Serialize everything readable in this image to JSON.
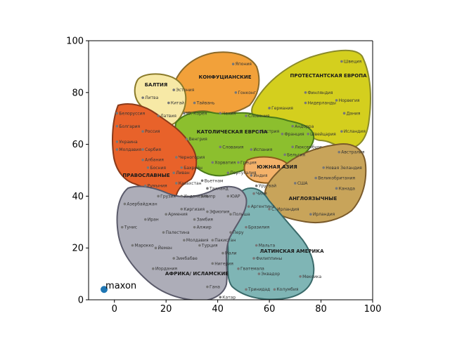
{
  "chart_data": {
    "type": "scatter",
    "xlim": [
      -10,
      100
    ],
    "ylim": [
      0,
      100
    ],
    "xticks": [
      0,
      20,
      40,
      60,
      80,
      100
    ],
    "yticks": [
      0,
      20,
      40,
      60,
      80,
      100
    ],
    "grid": false,
    "series": [
      {
        "name": "maxon",
        "color": "#1f77b4",
        "points": [
          {
            "x": -4,
            "y": 4
          }
        ]
      }
    ],
    "background_map": {
      "regions": [
        {
          "label": "БАЛТИЯ",
          "color": "#f7e9a6"
        },
        {
          "label": "КОНФУЦИАНСКИЕ",
          "color": "#f2a13a"
        },
        {
          "label": "ПРОТЕСТАНТСКАЯ ЕВРОПА",
          "color": "#d4cf1e"
        },
        {
          "label": "КАТОЛИЧЕСКАЯ ЕВРОПА",
          "color": "#8cbf2e"
        },
        {
          "label": "ПРАВОСЛАВНЫЕ",
          "color": "#e8622a"
        },
        {
          "label": "ЮЖНАЯ АЗИЯ",
          "color": "#f4b26a"
        },
        {
          "label": "АНГЛОЯЗЫЧНЫЕ",
          "color": "#c8a45a"
        },
        {
          "label": "ЛАТИНСКАЯ АМЕРИКА",
          "color": "#7fb5b5"
        },
        {
          "label": "АФРИКА/ ИСЛАМСКИЕ",
          "color": "#adadb8"
        }
      ],
      "countries": [
        {
          "name": "Япония",
          "x": 46,
          "y": 91
        },
        {
          "name": "Гонконг",
          "x": 47,
          "y": 80
        },
        {
          "name": "Эстония",
          "x": 23,
          "y": 81
        },
        {
          "name": "Литва",
          "x": 11,
          "y": 78
        },
        {
          "name": "Китай",
          "x": 21,
          "y": 76
        },
        {
          "name": "Тайвань",
          "x": 31,
          "y": 76
        },
        {
          "name": "Латвия",
          "x": 17,
          "y": 71
        },
        {
          "name": "Ю. Корея",
          "x": 27,
          "y": 72
        },
        {
          "name": "Белоруссия",
          "x": 1,
          "y": 72
        },
        {
          "name": "Болгария",
          "x": 1,
          "y": 67
        },
        {
          "name": "Россия",
          "x": 11,
          "y": 65
        },
        {
          "name": "Украина",
          "x": 1,
          "y": 61
        },
        {
          "name": "Молдавия",
          "x": 1,
          "y": 58
        },
        {
          "name": "Сербия",
          "x": 11,
          "y": 58
        },
        {
          "name": "Албания",
          "x": 11,
          "y": 54
        },
        {
          "name": "Босния",
          "x": 13,
          "y": 51
        },
        {
          "name": "Черногория",
          "x": 24,
          "y": 55
        },
        {
          "name": "Венгрия",
          "x": 28,
          "y": 62
        },
        {
          "name": "Чехия",
          "x": 41,
          "y": 72
        },
        {
          "name": "Словения",
          "x": 51,
          "y": 71
        },
        {
          "name": "Словакия",
          "x": 41,
          "y": 59
        },
        {
          "name": "Австрия",
          "x": 56,
          "y": 65
        },
        {
          "name": "Испания",
          "x": 53,
          "y": 58
        },
        {
          "name": "Хорватия",
          "x": 38,
          "y": 53
        },
        {
          "name": "Греция",
          "x": 48,
          "y": 53
        },
        {
          "name": "Португалия",
          "x": 44,
          "y": 49
        },
        {
          "name": "Индия",
          "x": 53,
          "y": 48
        },
        {
          "name": "Германия",
          "x": 60,
          "y": 74
        },
        {
          "name": "Финляндия",
          "x": 74,
          "y": 80
        },
        {
          "name": "Нидерланды",
          "x": 74,
          "y": 76
        },
        {
          "name": "Швеция",
          "x": 88,
          "y": 92
        },
        {
          "name": "Норвегия",
          "x": 86,
          "y": 77
        },
        {
          "name": "Дания",
          "x": 89,
          "y": 72
        },
        {
          "name": "Исландия",
          "x": 88,
          "y": 65
        },
        {
          "name": "Андорра",
          "x": 69,
          "y": 67
        },
        {
          "name": "Франция",
          "x": 65,
          "y": 64
        },
        {
          "name": "Швейцария",
          "x": 75,
          "y": 64
        },
        {
          "name": "Люксембург",
          "x": 69,
          "y": 59
        },
        {
          "name": "Бельгия",
          "x": 66,
          "y": 56
        },
        {
          "name": "Австралия",
          "x": 87,
          "y": 57
        },
        {
          "name": "Новая Зеландия",
          "x": 81,
          "y": 51
        },
        {
          "name": "Великобритания",
          "x": 78,
          "y": 47
        },
        {
          "name": "США",
          "x": 70,
          "y": 45
        },
        {
          "name": "Канада",
          "x": 86,
          "y": 43
        },
        {
          "name": "С. Ирландия",
          "x": 60,
          "y": 35
        },
        {
          "name": "Ирландия",
          "x": 76,
          "y": 33
        },
        {
          "name": "Уругвай",
          "x": 55,
          "y": 44
        },
        {
          "name": "Чили",
          "x": 54,
          "y": 41
        },
        {
          "name": "Аргентина",
          "x": 52,
          "y": 36
        },
        {
          "name": "Польша",
          "x": 45,
          "y": 33
        },
        {
          "name": "Бразилия",
          "x": 51,
          "y": 28
        },
        {
          "name": "Перу",
          "x": 45,
          "y": 26
        },
        {
          "name": "Мальта",
          "x": 55,
          "y": 21
        },
        {
          "name": "Филиппины",
          "x": 54,
          "y": 16
        },
        {
          "name": "Гватемала",
          "x": 48,
          "y": 12
        },
        {
          "name": "Эквадор",
          "x": 56,
          "y": 10
        },
        {
          "name": "Мексика",
          "x": 72,
          "y": 9
        },
        {
          "name": "Тринидад",
          "x": 51,
          "y": 4
        },
        {
          "name": "Колумбия",
          "x": 62,
          "y": 4
        },
        {
          "name": "Бахрейн",
          "x": 26,
          "y": 51
        },
        {
          "name": "Ливан",
          "x": 23,
          "y": 49
        },
        {
          "name": "Казахстан",
          "x": 24,
          "y": 45
        },
        {
          "name": "Вьетнам",
          "x": 34,
          "y": 46
        },
        {
          "name": "Таиланд",
          "x": 36,
          "y": 43
        },
        {
          "name": "Кипр",
          "x": 34,
          "y": 40
        },
        {
          "name": "ЮАР",
          "x": 44,
          "y": 40
        },
        {
          "name": "Румыния",
          "x": 12,
          "y": 44
        },
        {
          "name": "Грузия",
          "x": 17,
          "y": 40
        },
        {
          "name": "Индонезия",
          "x": 26,
          "y": 40
        },
        {
          "name": "Азербайджан",
          "x": 4,
          "y": 37
        },
        {
          "name": "Киргизия",
          "x": 26,
          "y": 35
        },
        {
          "name": "Эфиопия",
          "x": 36,
          "y": 34
        },
        {
          "name": "Армения",
          "x": 20,
          "y": 33
        },
        {
          "name": "Замбия",
          "x": 31,
          "y": 31
        },
        {
          "name": "Иран",
          "x": 12,
          "y": 31
        },
        {
          "name": "Алжир",
          "x": 31,
          "y": 28
        },
        {
          "name": "Тунис",
          "x": 3,
          "y": 28
        },
        {
          "name": "Палестина",
          "x": 19,
          "y": 26
        },
        {
          "name": "Молдавия",
          "x": 27,
          "y": 23
        },
        {
          "name": "Пакистан",
          "x": 38,
          "y": 23
        },
        {
          "name": "Марокко",
          "x": 7,
          "y": 21
        },
        {
          "name": "Йемен",
          "x": 16,
          "y": 20
        },
        {
          "name": "Турция",
          "x": 33,
          "y": 21
        },
        {
          "name": "Мали",
          "x": 42,
          "y": 18
        },
        {
          "name": "Зимбабве",
          "x": 23,
          "y": 16
        },
        {
          "name": "Нигерия",
          "x": 38,
          "y": 14
        },
        {
          "name": "Иордания",
          "x": 15,
          "y": 12
        },
        {
          "name": "Гана",
          "x": 36,
          "y": 5
        },
        {
          "name": "Катар",
          "x": 41,
          "y": 1
        }
      ]
    }
  }
}
